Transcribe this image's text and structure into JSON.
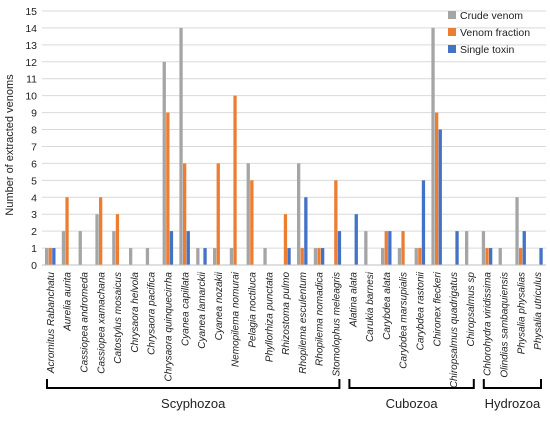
{
  "chart_data": {
    "type": "bar",
    "title": "",
    "xlabel": "",
    "ylabel": "Number of extracted venoms",
    "ylim": [
      0,
      15
    ],
    "yticks": [
      0,
      1,
      2,
      3,
      4,
      5,
      6,
      7,
      8,
      9,
      10,
      11,
      12,
      13,
      14,
      15
    ],
    "grid": true,
    "legend_position": "top-right",
    "categories": [
      "Acromitus Rabanchatu",
      "Aurelia aurita",
      "Cassiopea andromeda",
      "Cassiopea xamachana",
      "Catostylus mosaicus",
      "Chrysaora helvola",
      "Chrysaora pacifica",
      "Chrysaora quinquecirrha",
      "Cyanea capillata",
      "Cyanea lamarckii",
      "Cyanea nozakii",
      "Nemopilema nomurai",
      "Pelagia noctiluca",
      "Phyllorhiza punctata",
      "Rhizostoma pulmo",
      "Rhopilema esculentum",
      "Rhopilema nomadica",
      "Stomolophus meleagris",
      "Alatina alata",
      "Carukia barnesi",
      "Carybdea alata",
      "Carybdea marsupialis",
      "Carybdea rastonii",
      "Chironex fleckeri",
      "Chiropsalmus quadrigatus",
      "Chiropsalmus sp",
      "Chlorohydra viridissima",
      "Olindias sambaquiensis",
      "Physalia physalias",
      "Physalia utriculus"
    ],
    "series": [
      {
        "name": "Crude venom",
        "color": "#a5a5a5",
        "values": [
          1,
          2,
          2,
          3,
          2,
          1,
          1,
          12,
          14,
          1,
          1,
          1,
          6,
          1,
          0,
          6,
          1,
          0,
          0,
          2,
          1,
          1,
          1,
          14,
          0,
          2,
          2,
          1,
          4,
          0
        ]
      },
      {
        "name": "Venom fraction",
        "color": "#ed7d31",
        "values": [
          1,
          4,
          0,
          4,
          3,
          0,
          0,
          9,
          6,
          0,
          6,
          10,
          5,
          0,
          3,
          1,
          1,
          5,
          0,
          0,
          2,
          2,
          1,
          9,
          0,
          0,
          1,
          0,
          1,
          0
        ]
      },
      {
        "name": "Single toxin",
        "color": "#4472c4",
        "values": [
          1,
          0,
          0,
          0,
          0,
          0,
          0,
          2,
          2,
          1,
          0,
          0,
          0,
          0,
          1,
          4,
          1,
          2,
          3,
          0,
          2,
          0,
          5,
          8,
          2,
          0,
          1,
          0,
          2,
          1
        ]
      }
    ],
    "groups": [
      {
        "name": "Scyphozoa",
        "from": 0,
        "to": 17
      },
      {
        "name": "Cubozoa",
        "from": 18,
        "to": 25
      },
      {
        "name": "Hydrozoa",
        "from": 26,
        "to": 29
      }
    ]
  }
}
